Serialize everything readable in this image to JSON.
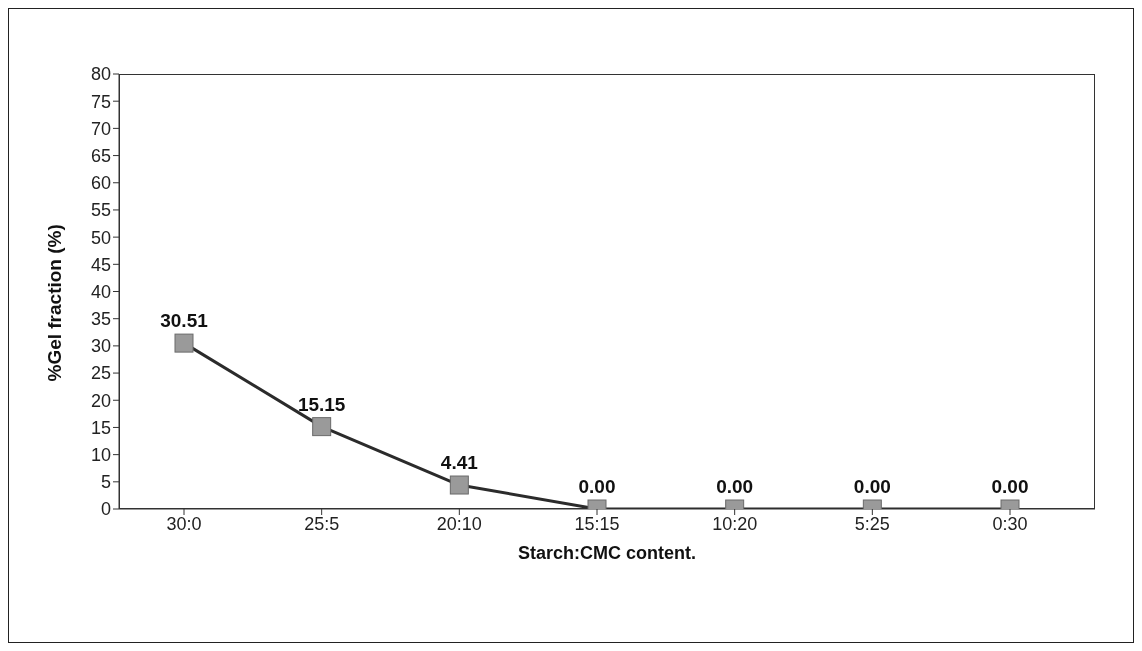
{
  "chart_data": {
    "type": "line",
    "xlabel": "Starch:CMC  content.",
    "ylabel": "%Gel fraction (%)",
    "categories": [
      "30:0",
      "25:5",
      "20:10",
      "15:15",
      "10:20",
      "5:25",
      "0:30"
    ],
    "series": [
      {
        "color": "#2b2b2b",
        "values": [
          30.51,
          15.15,
          4.41,
          0,
          0,
          0,
          0
        ],
        "value_labels": [
          "30.51",
          "15.15",
          "4.41",
          "0.00",
          "0.00",
          "0.00",
          "0.00"
        ]
      }
    ],
    "ylim": [
      0,
      80
    ],
    "yticks": [
      0,
      5,
      10,
      15,
      20,
      25,
      30,
      35,
      40,
      45,
      50,
      55,
      60,
      65,
      70,
      75,
      80
    ],
    "grid": false,
    "legend": false,
    "marker": "square",
    "line_style": "solid"
  }
}
